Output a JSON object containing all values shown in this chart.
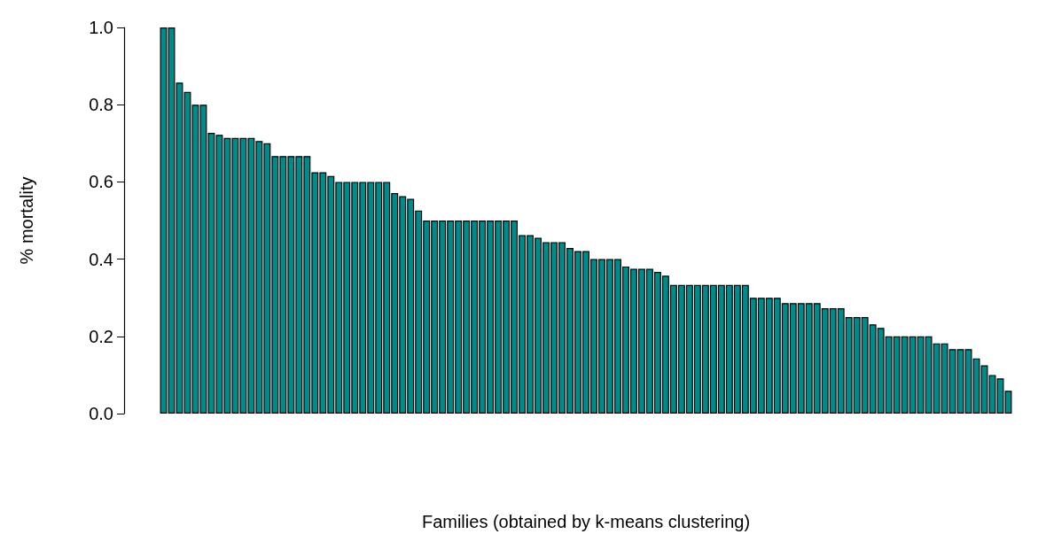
{
  "chart_data": {
    "type": "bar",
    "xlabel": "Families (obtained by k-means clustering)",
    "ylabel": "% mortality",
    "categories": [
      null,
      null,
      null,
      null,
      null,
      null,
      null,
      null,
      null,
      null,
      null,
      null,
      null,
      null,
      null,
      null,
      null,
      null,
      null,
      null,
      null,
      null,
      null,
      null,
      null,
      null,
      null,
      null,
      null,
      null,
      null,
      null,
      null,
      null,
      null,
      null,
      null,
      null,
      null,
      null,
      null,
      null,
      null,
      null,
      null,
      null,
      null,
      null,
      null,
      null,
      null,
      null,
      null,
      null,
      null,
      null,
      null,
      null,
      null,
      null,
      null,
      null,
      null,
      null,
      null,
      null,
      null,
      null,
      null,
      null,
      null,
      null,
      null,
      null,
      null,
      null,
      null,
      null,
      null,
      null,
      null,
      null,
      null,
      null,
      null,
      null,
      null,
      null,
      null,
      null,
      null,
      null,
      null,
      null,
      null,
      null,
      null,
      null,
      null,
      null,
      null,
      null,
      null,
      null,
      null,
      null,
      null
    ],
    "values": [
      1.0,
      1.0,
      0.857,
      0.833,
      0.8,
      0.8,
      0.727,
      0.722,
      0.714,
      0.714,
      0.714,
      0.714,
      0.706,
      0.7,
      0.667,
      0.667,
      0.667,
      0.667,
      0.667,
      0.625,
      0.625,
      0.615,
      0.6,
      0.6,
      0.6,
      0.6,
      0.6,
      0.6,
      0.6,
      0.571,
      0.563,
      0.556,
      0.526,
      0.5,
      0.5,
      0.5,
      0.5,
      0.5,
      0.5,
      0.5,
      0.5,
      0.5,
      0.5,
      0.5,
      0.5,
      0.462,
      0.462,
      0.455,
      0.444,
      0.444,
      0.444,
      0.429,
      0.421,
      0.421,
      0.4,
      0.4,
      0.4,
      0.4,
      0.381,
      0.375,
      0.375,
      0.375,
      0.367,
      0.357,
      0.333,
      0.333,
      0.333,
      0.333,
      0.333,
      0.333,
      0.333,
      0.333,
      0.333,
      0.333,
      0.3,
      0.3,
      0.3,
      0.3,
      0.286,
      0.286,
      0.286,
      0.286,
      0.286,
      0.273,
      0.273,
      0.273,
      0.25,
      0.25,
      0.25,
      0.231,
      0.222,
      0.2,
      0.2,
      0.2,
      0.2,
      0.2,
      0.2,
      0.182,
      0.182,
      0.167,
      0.167,
      0.167,
      0.143,
      0.125,
      0.1,
      0.091,
      0.059
    ],
    "color": "#008b8b",
    "ylim": [
      0,
      1
    ],
    "yticks": [
      {
        "value": 0,
        "label": "0.0"
      },
      {
        "value": 0.2,
        "label": "0.2"
      },
      {
        "value": 0.4,
        "label": "0.4"
      },
      {
        "value": 0.6,
        "label": "0.6"
      },
      {
        "value": 0.8,
        "label": "0.8"
      },
      {
        "value": 1,
        "label": "1.0"
      }
    ]
  }
}
